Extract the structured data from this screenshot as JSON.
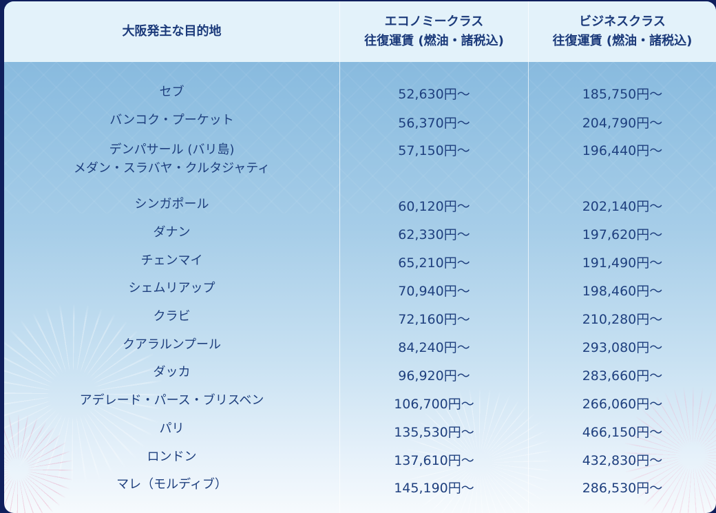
{
  "table": {
    "headers": {
      "destination": "大阪発主な目的地",
      "economy_line1": "エコノミークラス",
      "economy_line2": "往復運賃 (燃油・諸税込)",
      "business_line1": "ビジネスクラス",
      "business_line2": "往復運賃 (燃油・諸税込)"
    },
    "rows": [
      {
        "dest": [
          "セブ"
        ],
        "economy": "52,630円〜",
        "business": "185,750円〜"
      },
      {
        "dest": [
          "バンコク・プーケット"
        ],
        "economy": "56,370円〜",
        "business": "204,790円〜"
      },
      {
        "dest": [
          "デンパサール (バリ島)",
          "メダン・スラバヤ・クルタジャティ"
        ],
        "economy": "57,150円〜",
        "business": "196,440円〜"
      },
      {
        "dest": [
          "シンガポール"
        ],
        "economy": "60,120円〜",
        "business": "202,140円〜"
      },
      {
        "dest": [
          "ダナン"
        ],
        "economy": "62,330円〜",
        "business": "197,620円〜"
      },
      {
        "dest": [
          "チェンマイ"
        ],
        "economy": "65,210円〜",
        "business": "191,490円〜"
      },
      {
        "dest": [
          "シェムリアップ"
        ],
        "economy": "70,940円〜",
        "business": "198,460円〜"
      },
      {
        "dest": [
          "クラビ"
        ],
        "economy": "72,160円〜",
        "business": "210,280円〜"
      },
      {
        "dest": [
          "クアラルンプール"
        ],
        "economy": "84,240円〜",
        "business": "293,080円〜"
      },
      {
        "dest": [
          "ダッカ"
        ],
        "economy": "96,920円〜",
        "business": "283,660円〜"
      },
      {
        "dest": [
          "アデレード・パース・ブリスベン"
        ],
        "economy": "106,700円〜",
        "business": "266,060円〜"
      },
      {
        "dest": [
          "パリ"
        ],
        "economy": "135,530円〜",
        "business": "466,150円〜"
      },
      {
        "dest": [
          "ロンドン"
        ],
        "economy": "137,610円〜",
        "business": "432,830円〜"
      },
      {
        "dest": [
          "マレ（モルディブ）"
        ],
        "economy": "145,190円〜",
        "business": "286,530円〜"
      }
    ]
  },
  "colors": {
    "header_bg": "#e3f2fa",
    "text": "#1e3f7e",
    "outer_bg": "#0f1f5c"
  }
}
